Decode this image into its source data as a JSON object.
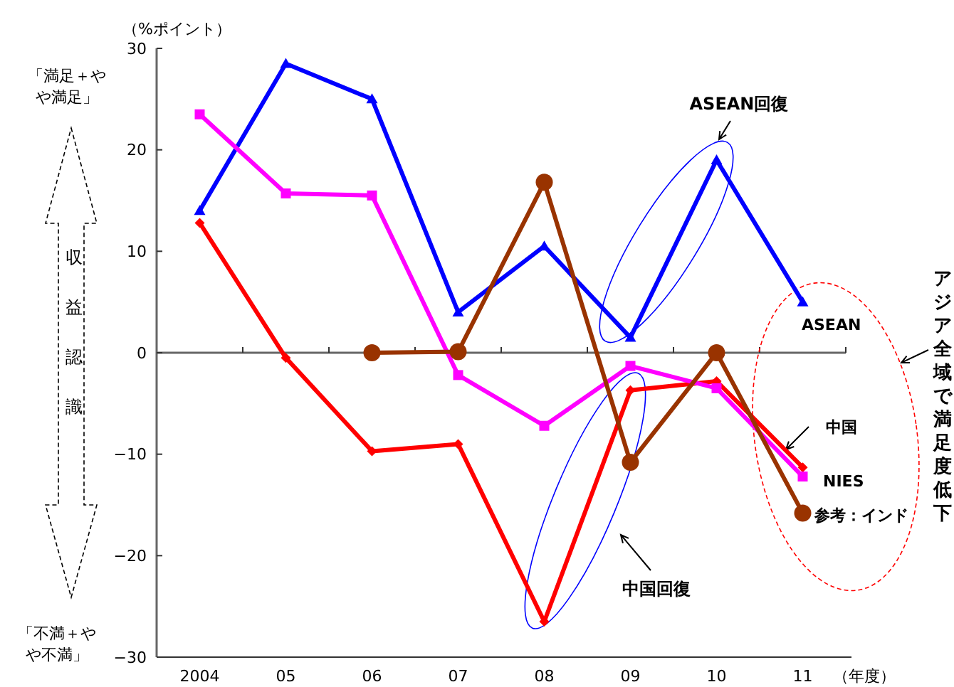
{
  "chart_data": {
    "type": "line",
    "ylabel": "（%ポイント）",
    "xlabel": "（年度）",
    "categories": [
      "2004",
      "05",
      "06",
      "07",
      "08",
      "09",
      "10",
      "11"
    ],
    "ylim": [
      -30,
      30
    ],
    "yticks": [
      -30,
      -20,
      -10,
      0,
      10,
      20,
      30
    ],
    "series": [
      {
        "name": "ASEAN",
        "color": "#0000ff",
        "marker": "triangle",
        "values": [
          14,
          28.5,
          25,
          4,
          10.5,
          1.5,
          19,
          5
        ]
      },
      {
        "name": "中国",
        "color": "#ff0000",
        "marker": "diamond",
        "values": [
          12.8,
          -0.5,
          -9.7,
          -9,
          -26.5,
          -3.7,
          -2.8,
          -11.3
        ]
      },
      {
        "name": "NIES",
        "color": "#ff00ff",
        "marker": "square",
        "values": [
          23.5,
          15.7,
          15.5,
          -2.2,
          -7.2,
          -1.3,
          -3.5,
          -12.2
        ]
      },
      {
        "name": "参考：インド",
        "color": "#993300",
        "marker": "circle",
        "values": [
          null,
          null,
          0,
          0.1,
          16.8,
          -10.8,
          0,
          -15.8
        ]
      }
    ],
    "annotations": [
      "「満足＋やや満足」",
      "収益認識",
      "「不満＋やや不満」",
      "ASEAN回復",
      "中国回復",
      "アジア全域で満足度低下"
    ]
  }
}
